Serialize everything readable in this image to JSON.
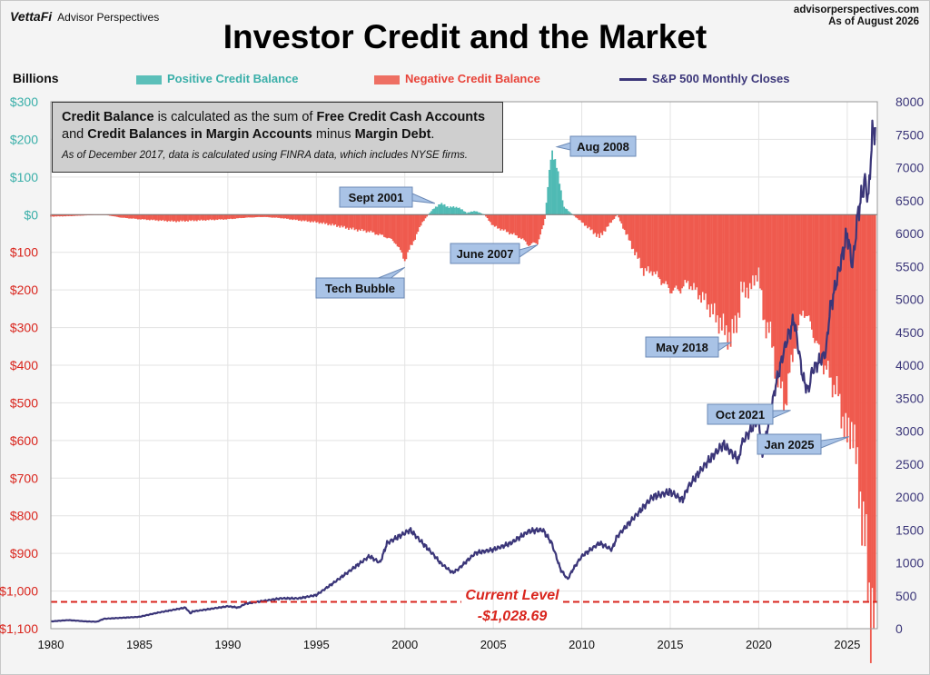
{
  "header": {
    "logo": "VettaFi",
    "logo_sub": "Advisor Perspectives",
    "site": "advisorperspectives.com",
    "as_of": "As of August 2026"
  },
  "chart_data": {
    "type": "bar",
    "title": "Investor Credit and the Market",
    "left_axis_label": "Billions",
    "left_axis": {
      "range": [
        -1100,
        300
      ],
      "ticks": [
        300,
        200,
        100,
        0,
        -100,
        -200,
        -300,
        -400,
        -500,
        -600,
        -700,
        -800,
        -900,
        -1000,
        -1100
      ],
      "tick_labels": [
        "$300",
        "$200",
        "$100",
        "$0",
        "$100",
        "$200",
        "$300",
        "$400",
        "$500",
        "$600",
        "$700",
        "$800",
        "$900",
        "$1,000",
        "$1,100"
      ],
      "positive_color": "#3aafa9",
      "negative_color": "#d9251d"
    },
    "right_axis": {
      "range": [
        0,
        8000
      ],
      "ticks": [
        0,
        500,
        1000,
        1500,
        2000,
        2500,
        3000,
        3500,
        4000,
        4500,
        5000,
        5500,
        6000,
        6500,
        7000,
        7500,
        8000
      ],
      "tick_labels": [
        "0",
        "500",
        "1000",
        "1500",
        "2000",
        "2500",
        "3000",
        "3500",
        "4000",
        "4500",
        "5000",
        "5500",
        "6000",
        "6500",
        "7000",
        "7500",
        "8000"
      ],
      "color": "#3b3679"
    },
    "x_axis": {
      "range": [
        1980,
        2026.7
      ],
      "ticks": [
        1980,
        1985,
        1990,
        1995,
        2000,
        2005,
        2010,
        2015,
        2020,
        2025
      ],
      "tick_labels": [
        "1980",
        "1985",
        "1990",
        "1995",
        "2000",
        "2005",
        "2010",
        "2015",
        "2020",
        "2025"
      ]
    },
    "grid": true,
    "legend": {
      "placement": "top",
      "positive": "Positive Credit Balance",
      "negative": "Negative Credit Balance",
      "sp500": "S&P 500 Monthly Closes"
    },
    "series": [
      {
        "name": "Credit Balance",
        "axis": "left",
        "x": [
          1980,
          1981,
          1982,
          1983,
          1984,
          1985,
          1986,
          1987,
          1988,
          1989,
          1990,
          1991,
          1992,
          1993,
          1994,
          1995,
          1996,
          1997,
          1998,
          1999,
          1999.5,
          2000,
          2000.3,
          2000.7,
          2001,
          2001.5,
          2002,
          2002.5,
          2003,
          2003.5,
          2004,
          2004.5,
          2005,
          2006,
          2006.5,
          2007,
          2007.5,
          2007.9,
          2008.3,
          2008.7,
          2009,
          2009.5,
          2010,
          2011,
          2011.5,
          2012,
          2013,
          2013.5,
          2014,
          2015,
          2015.5,
          2016,
          2017,
          2018,
          2018.4,
          2018.9,
          2019,
          2019.5,
          2020,
          2020.3,
          2020.6,
          2021,
          2021.5,
          2021.8,
          2022,
          2022.5,
          2023,
          2023.5,
          2024,
          2024.5,
          2025,
          2025.3,
          2025.6,
          2026,
          2026.3,
          2026.6
        ],
        "values": [
          -5,
          -4,
          -2,
          0,
          -8,
          -12,
          -15,
          -18,
          -16,
          -14,
          -12,
          -8,
          -6,
          -9,
          -15,
          -20,
          -28,
          -38,
          -45,
          -60,
          -75,
          -120,
          -90,
          -50,
          -20,
          10,
          30,
          20,
          20,
          5,
          10,
          0,
          -30,
          -50,
          -60,
          -80,
          -75,
          -20,
          180,
          100,
          20,
          0,
          -20,
          -60,
          -30,
          0,
          -100,
          -150,
          -150,
          -200,
          -200,
          -180,
          -230,
          -300,
          -330,
          -260,
          -200,
          -200,
          -150,
          -290,
          -300,
          -420,
          -500,
          -410,
          -350,
          -250,
          -300,
          -380,
          -430,
          -480,
          -600,
          -550,
          -700,
          -850,
          -1060,
          -1028.69
        ]
      },
      {
        "name": "S&P 500 Monthly Closes",
        "axis": "right",
        "x": [
          1980,
          1981,
          1982,
          1982.6,
          1983,
          1984,
          1985,
          1986,
          1987,
          1987.6,
          1987.9,
          1988,
          1989,
          1990,
          1990.6,
          1991,
          1992,
          1993,
          1994,
          1995,
          1996,
          1997,
          1998,
          1998.6,
          1999,
          2000,
          2000.3,
          2001,
          2001.7,
          2002,
          2002.7,
          2003,
          2004,
          2005,
          2006,
          2007,
          2007.8,
          2008.3,
          2008.8,
          2009.2,
          2009.5,
          2010,
          2011,
          2011.7,
          2012,
          2013,
          2014,
          2015,
          2015.7,
          2016,
          2017,
          2018,
          2018.9,
          2019,
          2019.5,
          2020,
          2020.2,
          2020.6,
          2021,
          2021.5,
          2021.99,
          2022.5,
          2022.8,
          2023,
          2023.8,
          2024,
          2024.5,
          2025,
          2025.3,
          2025.6,
          2026,
          2026.2,
          2026.4,
          2026.6
        ],
        "values": [
          110,
          130,
          110,
          105,
          150,
          165,
          180,
          240,
          290,
          320,
          230,
          260,
          300,
          340,
          320,
          380,
          420,
          460,
          460,
          510,
          700,
          900,
          1100,
          1000,
          1300,
          1450,
          1500,
          1300,
          1100,
          1000,
          850,
          900,
          1150,
          1200,
          1300,
          1480,
          1500,
          1300,
          900,
          750,
          900,
          1100,
          1300,
          1200,
          1400,
          1700,
          2000,
          2080,
          1950,
          2150,
          2500,
          2800,
          2550,
          2800,
          3000,
          3200,
          2600,
          3200,
          3750,
          4300,
          4700,
          3800,
          3600,
          3900,
          4200,
          4800,
          5400,
          6000,
          5500,
          6300,
          6800,
          6500,
          7500,
          7600
        ]
      }
    ],
    "current_level": {
      "label": "Current Level",
      "value": -1028.69,
      "value_label": "-$1,028.69"
    },
    "info_box": {
      "bold1": "Credit Balance",
      "t1": " is calculated as the sum of ",
      "bold2": "Free Credit Cash Accounts",
      "t2": "and ",
      "bold3": "Credit Balances in Margin Accounts",
      "t3": " minus ",
      "bold4": "Margin Debt",
      "t4": ".",
      "note": "As of December 2017, data is calculated using FINRA data, which includes NYSE firms."
    },
    "annotations": [
      {
        "text": "Sept 2001",
        "year": 2001.7,
        "value": 30,
        "axis": "left"
      },
      {
        "text": "Aug 2008",
        "year": 2008.6,
        "value": 180,
        "axis": "left"
      },
      {
        "text": "June 2007",
        "year": 2007.5,
        "value": -80,
        "axis": "left"
      },
      {
        "text": "Tech Bubble",
        "year": 2000.0,
        "value": -140,
        "axis": "left"
      },
      {
        "text": "May 2018",
        "year": 2018.4,
        "value": -340,
        "axis": "left"
      },
      {
        "text": "Oct 2021",
        "year": 2021.8,
        "value": -520,
        "axis": "left"
      },
      {
        "text": "Jan 2025",
        "year": 2025.1,
        "value": -590,
        "axis": "left"
      }
    ]
  }
}
